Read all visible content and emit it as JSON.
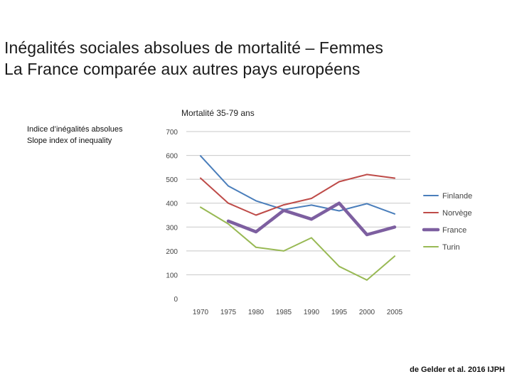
{
  "slide": {
    "title_line1": "Inégalités sociales absolues de mortalité – Femmes",
    "title_line2": "La France comparée aux autres pays européens",
    "source": "de Gelder et al. 2016 IJPH"
  },
  "chart_data": {
    "type": "line",
    "title": "Mortalité 35-79 ans",
    "ylabel_line1": "Indice d’inégalités absolues",
    "ylabel_line2": "Slope index of inequality",
    "x": [
      "1970",
      "1975",
      "1980",
      "1985",
      "1990",
      "1995",
      "2000",
      "2005"
    ],
    "ylim": [
      0,
      700
    ],
    "yticks": [
      0,
      100,
      200,
      300,
      400,
      500,
      600,
      700
    ],
    "grid": true,
    "legend_position": "right",
    "series": [
      {
        "name": "Finlande",
        "color": "#4a7ebb",
        "width": 2,
        "values": [
          598,
          472,
          410,
          373,
          392,
          368,
          398,
          355
        ]
      },
      {
        "name": "Norvège",
        "color": "#be4b48",
        "width": 2,
        "values": [
          505,
          400,
          350,
          393,
          420,
          490,
          520,
          505
        ]
      },
      {
        "name": "France",
        "color": "#7d5fa0",
        "width": 4.5,
        "values": [
          null,
          325,
          280,
          370,
          333,
          400,
          268,
          300
        ]
      },
      {
        "name": "Turin",
        "color": "#98b954",
        "width": 2,
        "values": [
          383,
          313,
          215,
          200,
          255,
          135,
          78,
          178
        ]
      }
    ]
  }
}
